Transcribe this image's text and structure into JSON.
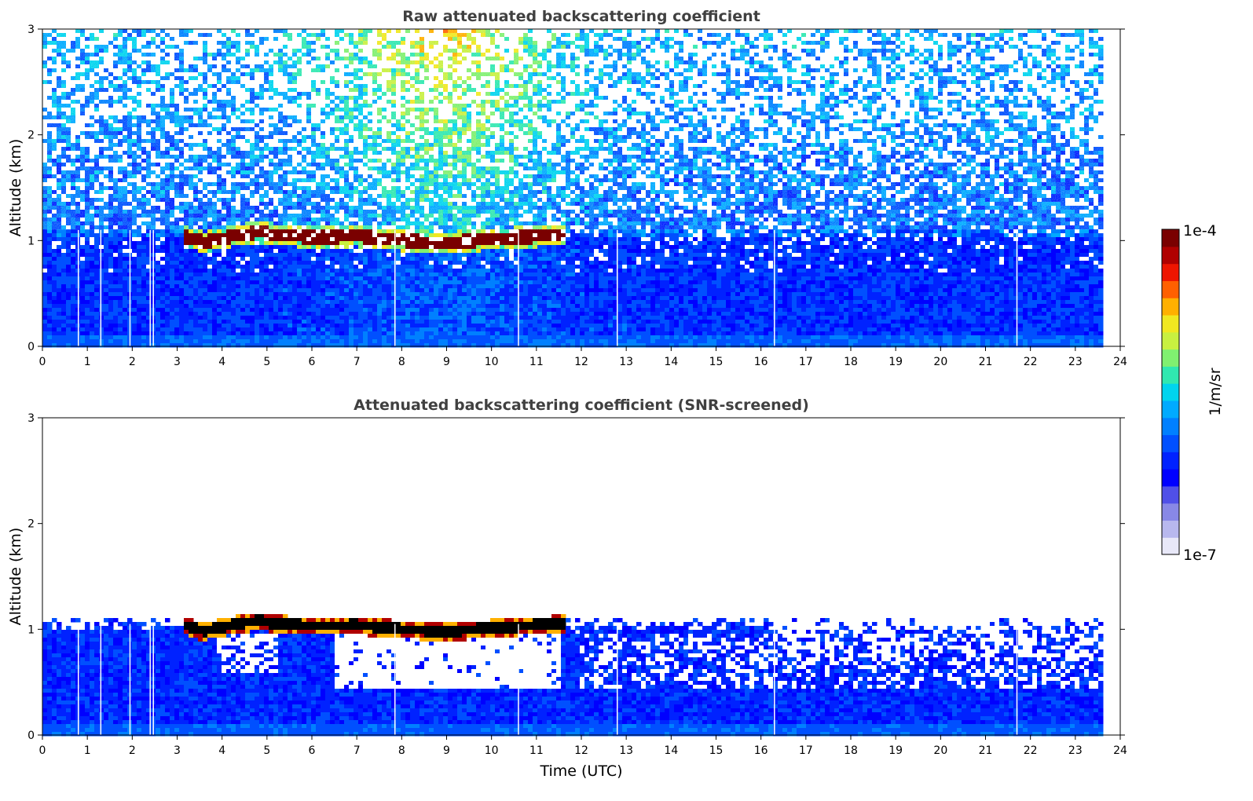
{
  "chart_data": [
    {
      "type": "heatmap",
      "title": "Raw attenuated backscattering coefficient",
      "xlabel": "",
      "ylabel": "Altitude (km)",
      "xlim": [
        0,
        24
      ],
      "ylim": [
        0,
        3
      ],
      "x_ticks": [
        0,
        1,
        2,
        3,
        4,
        5,
        6,
        7,
        8,
        9,
        10,
        11,
        12,
        13,
        14,
        15,
        16,
        17,
        18,
        19,
        20,
        21,
        22,
        23,
        24
      ],
      "y_ticks": [
        0,
        1,
        2,
        3
      ],
      "data_end_time": 23.6,
      "gap_times": [
        0.8,
        1.3,
        1.95,
        2.4,
        2.47,
        7.85,
        10.6,
        12.8,
        16.3,
        21.7
      ],
      "cloud_layer": {
        "start": 3.1,
        "end": 11.6,
        "altitude_points": [
          [
            3.1,
            1.05
          ],
          [
            3.6,
            0.98
          ],
          [
            4.2,
            1.04
          ],
          [
            4.8,
            1.08
          ],
          [
            5.3,
            1.05
          ],
          [
            6.0,
            1.03
          ],
          [
            7.0,
            1.04
          ],
          [
            8.0,
            1.0
          ],
          [
            9.0,
            0.98
          ],
          [
            10.0,
            1.01
          ],
          [
            11.0,
            1.04
          ],
          [
            11.6,
            1.05
          ]
        ]
      }
    },
    {
      "type": "heatmap",
      "title": "Attenuated backscattering coefficient (SNR-screened)",
      "xlabel": "Time (UTC)",
      "ylabel": "Altitude (km)",
      "xlim": [
        0,
        24
      ],
      "ylim": [
        0,
        3
      ],
      "x_ticks": [
        0,
        1,
        2,
        3,
        4,
        5,
        6,
        7,
        8,
        9,
        10,
        11,
        12,
        13,
        14,
        15,
        16,
        17,
        18,
        19,
        20,
        21,
        22,
        23,
        24
      ],
      "y_ticks": [
        0,
        1,
        2,
        3
      ],
      "data_end_time": 23.6,
      "gap_times": [
        0.8,
        1.3,
        1.95,
        2.4,
        2.47,
        7.85,
        10.6,
        12.8,
        16.3,
        21.7
      ],
      "cloud_layer": {
        "start": 3.1,
        "end": 11.6,
        "altitude_points": [
          [
            3.1,
            1.05
          ],
          [
            3.6,
            0.98
          ],
          [
            4.2,
            1.04
          ],
          [
            4.8,
            1.08
          ],
          [
            5.3,
            1.05
          ],
          [
            6.0,
            1.03
          ],
          [
            7.0,
            1.04
          ],
          [
            8.0,
            1.0
          ],
          [
            9.0,
            0.98
          ],
          [
            10.0,
            1.01
          ],
          [
            11.0,
            1.04
          ],
          [
            11.6,
            1.05
          ]
        ]
      },
      "screened_top_altitude": 1.05
    }
  ],
  "colorbar": {
    "label": "1/m/sr",
    "min_label": "1e-7",
    "max_label": "1e-4",
    "colors": [
      "#e8e8f8",
      "#b8b8ee",
      "#8888e6",
      "#5050e8",
      "#0000ff",
      "#0022ff",
      "#0050ff",
      "#0080ff",
      "#00aaff",
      "#00d4ee",
      "#30e8b0",
      "#80f070",
      "#c8f040",
      "#f0e820",
      "#ffb000",
      "#ff6000",
      "#ee1500",
      "#b00000",
      "#7a0000"
    ]
  }
}
